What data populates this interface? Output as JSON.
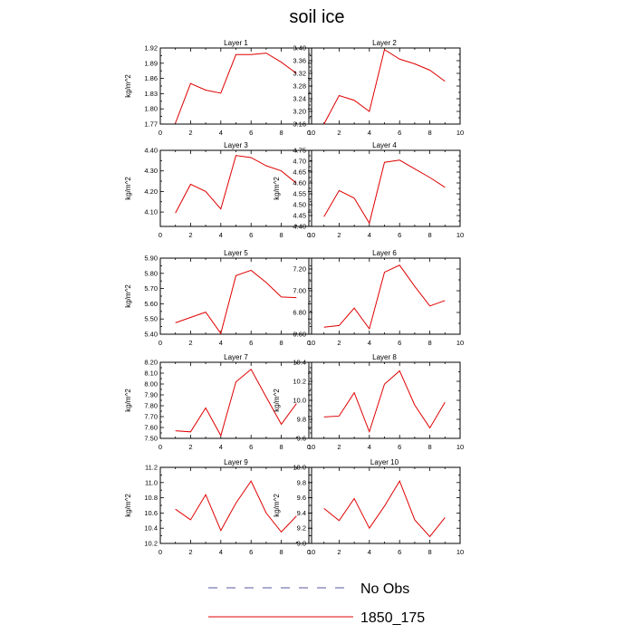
{
  "figure": {
    "title": "soil ice",
    "legend": [
      {
        "label": "No Obs",
        "style": "dashed",
        "color": "#5a5aa0"
      },
      {
        "label": "1850_175",
        "style": "solid",
        "color": "#e00000"
      }
    ]
  },
  "chart_data": [
    {
      "type": "line",
      "title": "Layer 1",
      "ylabel": "kg/m^2",
      "xlim": [
        0,
        10
      ],
      "ylim": [
        1.77,
        1.92
      ],
      "xticks": [
        0,
        2,
        4,
        6,
        8,
        10
      ],
      "yticks": [
        "1.77",
        "1.80",
        "1.83",
        "1.86",
        "1.89",
        "1.92"
      ],
      "x": [
        1,
        2,
        3,
        4,
        5,
        6,
        7,
        8,
        9
      ],
      "series": [
        {
          "name": "1850_175",
          "color": "#e00000",
          "values": [
            1.772,
            1.85,
            1.837,
            1.831,
            1.907,
            1.907,
            1.91,
            1.892,
            1.87
          ]
        }
      ]
    },
    {
      "type": "line",
      "title": "Layer 2",
      "ylabel": "",
      "xlim": [
        0,
        10
      ],
      "ylim": [
        3.16,
        3.4
      ],
      "xticks": [
        0,
        2,
        4,
        6,
        8,
        10
      ],
      "yticks": [
        "3.16",
        "3.20",
        "3.24",
        "3.28",
        "3.32",
        "3.36",
        "3.40"
      ],
      "x": [
        1,
        2,
        3,
        4,
        5,
        6,
        7,
        8,
        9
      ],
      "series": [
        {
          "name": "1850_175",
          "color": "#e00000",
          "values": [
            3.16,
            3.25,
            3.235,
            3.2,
            3.395,
            3.365,
            3.35,
            3.33,
            3.295
          ]
        }
      ]
    },
    {
      "type": "line",
      "title": "Layer 3",
      "ylabel": "kg/m^2",
      "xlim": [
        0,
        10
      ],
      "ylim": [
        4.03,
        4.4
      ],
      "xticks": [
        0,
        2,
        4,
        6,
        8,
        10
      ],
      "yticks": [
        "4.10",
        "4.20",
        "4.30",
        "4.40"
      ],
      "x": [
        1,
        2,
        3,
        4,
        5,
        6,
        7,
        8,
        9
      ],
      "series": [
        {
          "name": "1850_175",
          "color": "#e00000",
          "values": [
            4.095,
            4.235,
            4.2,
            4.115,
            4.375,
            4.365,
            4.325,
            4.3,
            4.24
          ]
        }
      ]
    },
    {
      "type": "line",
      "title": "Layer 4",
      "ylabel": "kg/m^2",
      "xlim": [
        0,
        10
      ],
      "ylim": [
        4.4,
        4.75
      ],
      "xticks": [
        0,
        2,
        4,
        6,
        8,
        10
      ],
      "yticks": [
        "4.40",
        "4.45",
        "4.50",
        "4.55",
        "4.60",
        "4.65",
        "4.70",
        "4.75"
      ],
      "x": [
        1,
        2,
        3,
        4,
        5,
        6,
        7,
        8,
        9
      ],
      "series": [
        {
          "name": "1850_175",
          "color": "#e00000",
          "values": [
            4.445,
            4.565,
            4.53,
            4.415,
            4.695,
            4.705,
            4.665,
            4.625,
            4.58
          ]
        }
      ]
    },
    {
      "type": "line",
      "title": "Layer 5",
      "ylabel": "kg/m^2",
      "xlim": [
        0,
        10
      ],
      "ylim": [
        5.4,
        5.9
      ],
      "xticks": [
        0,
        2,
        4,
        6,
        8,
        10
      ],
      "yticks": [
        "5.40",
        "5.50",
        "5.60",
        "5.70",
        "5.80",
        "5.90"
      ],
      "x": [
        1,
        2,
        3,
        4,
        5,
        6,
        7,
        8,
        9
      ],
      "series": [
        {
          "name": "1850_175",
          "color": "#e00000",
          "values": [
            5.475,
            5.51,
            5.545,
            5.405,
            5.785,
            5.82,
            5.74,
            5.645,
            5.64
          ]
        }
      ]
    },
    {
      "type": "line",
      "title": "Layer 6",
      "ylabel": "",
      "xlim": [
        0,
        10
      ],
      "ylim": [
        6.6,
        7.3
      ],
      "xticks": [
        0,
        2,
        4,
        6,
        8,
        10
      ],
      "yticks": [
        "6.60",
        "6.80",
        "7.00",
        "7.20"
      ],
      "x": [
        1,
        2,
        3,
        4,
        5,
        6,
        7,
        8,
        9
      ],
      "series": [
        {
          "name": "1850_175",
          "color": "#e00000",
          "values": [
            6.665,
            6.68,
            6.84,
            6.65,
            7.17,
            7.235,
            7.04,
            6.86,
            6.91
          ]
        }
      ]
    },
    {
      "type": "line",
      "title": "Layer 7",
      "ylabel": "kg/m^2",
      "xlim": [
        0,
        10
      ],
      "ylim": [
        7.5,
        8.2
      ],
      "xticks": [
        0,
        2,
        4,
        6,
        8,
        10
      ],
      "yticks": [
        "7.50",
        "7.60",
        "7.70",
        "7.80",
        "7.90",
        "8.00",
        "8.10",
        "8.20"
      ],
      "x": [
        1,
        2,
        3,
        4,
        5,
        6,
        7,
        8,
        9
      ],
      "series": [
        {
          "name": "1850_175",
          "color": "#e00000",
          "values": [
            7.57,
            7.56,
            7.78,
            7.525,
            8.02,
            8.135,
            7.88,
            7.63,
            7.82
          ]
        }
      ]
    },
    {
      "type": "line",
      "title": "Layer 8",
      "ylabel": "kg/m^2",
      "xlim": [
        0,
        10
      ],
      "ylim": [
        9.6,
        10.4
      ],
      "xticks": [
        0,
        2,
        4,
        6,
        8,
        10
      ],
      "yticks": [
        "9.6",
        "9.8",
        "10.0",
        "10.2",
        "10.4"
      ],
      "x": [
        1,
        2,
        3,
        4,
        5,
        6,
        7,
        8,
        9
      ],
      "series": [
        {
          "name": "1850_175",
          "color": "#e00000",
          "values": [
            9.825,
            9.835,
            10.08,
            9.67,
            10.17,
            10.31,
            9.95,
            9.71,
            9.98
          ]
        }
      ]
    },
    {
      "type": "line",
      "title": "Layer 9",
      "ylabel": "kg/m^2",
      "xlim": [
        0,
        10
      ],
      "ylim": [
        10.2,
        11.2
      ],
      "xticks": [
        0,
        2,
        4,
        6,
        8,
        10
      ],
      "yticks": [
        "10.2",
        "10.4",
        "10.6",
        "10.8",
        "11.0",
        "11.2"
      ],
      "x": [
        1,
        2,
        3,
        4,
        5,
        6,
        7,
        8,
        9
      ],
      "series": [
        {
          "name": "1850_175",
          "color": "#e00000",
          "values": [
            10.65,
            10.51,
            10.84,
            10.37,
            10.73,
            11.02,
            10.6,
            10.35,
            10.56
          ]
        }
      ]
    },
    {
      "type": "line",
      "title": "Layer 10",
      "ylabel": "kg/m^2",
      "xlim": [
        0,
        10
      ],
      "ylim": [
        9.0,
        10.0
      ],
      "xticks": [
        0,
        2,
        4,
        6,
        8,
        10
      ],
      "yticks": [
        "9.0",
        "9.2",
        "9.4",
        "9.6",
        "9.8",
        "10.0"
      ],
      "x": [
        1,
        2,
        3,
        4,
        5,
        6,
        7,
        8,
        9
      ],
      "series": [
        {
          "name": "1850_175",
          "color": "#e00000",
          "values": [
            9.46,
            9.3,
            9.59,
            9.2,
            9.49,
            9.82,
            9.31,
            9.09,
            9.34
          ]
        }
      ]
    }
  ]
}
